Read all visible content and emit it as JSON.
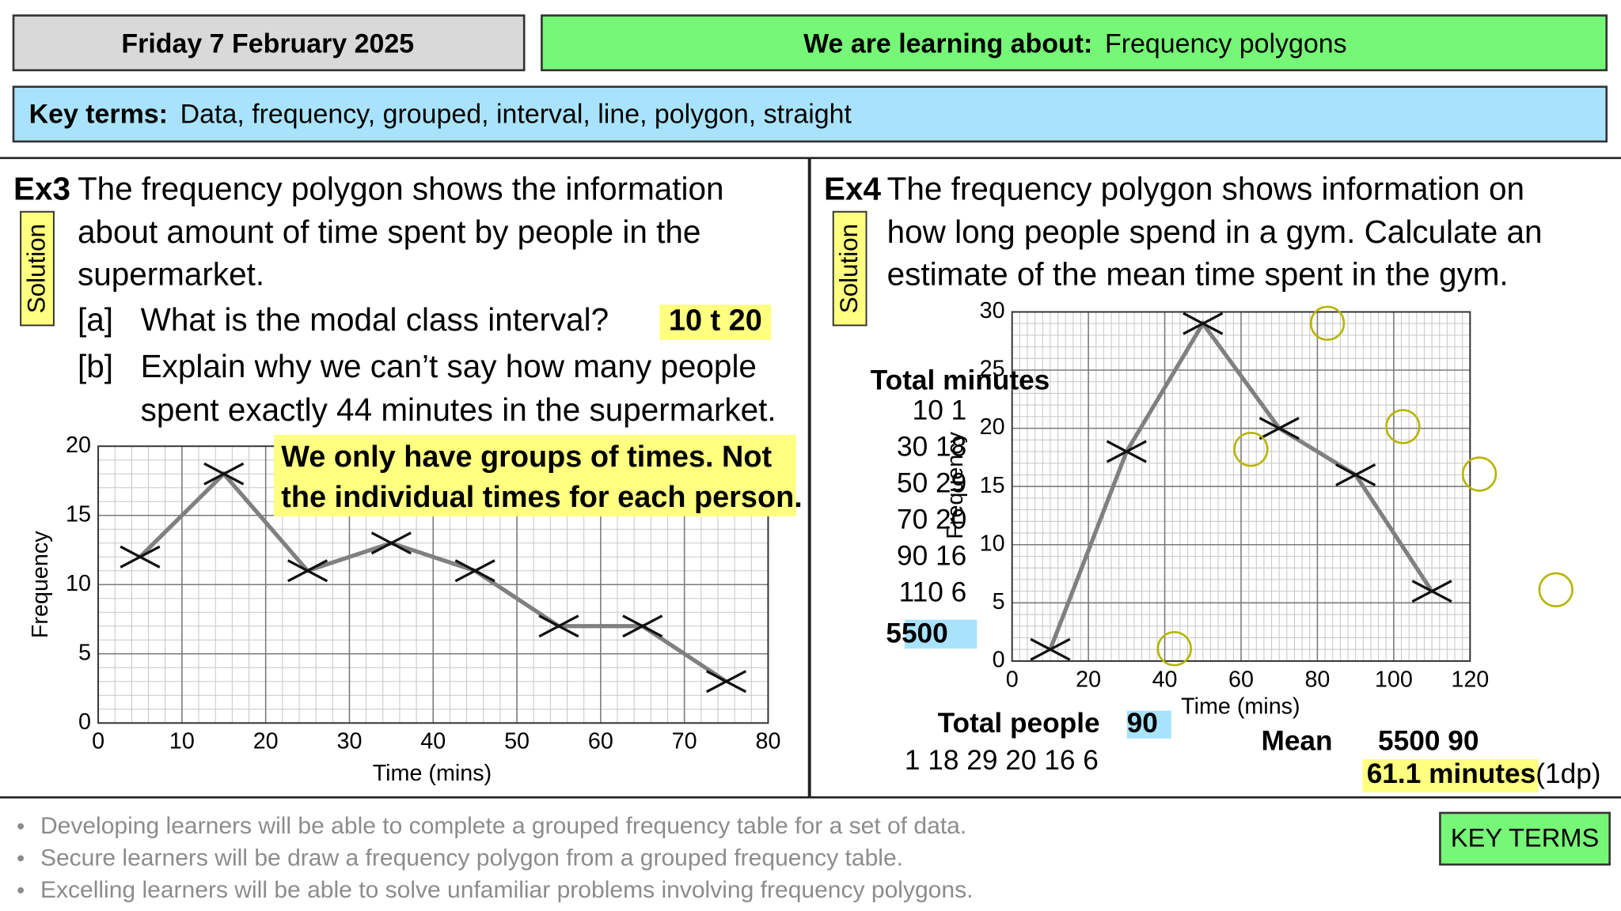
{
  "header": {
    "date": "Friday 7 February 2025",
    "objective_label": "We are learning about:",
    "objective": "Frequency polygons",
    "key_terms_label": "Key terms:",
    "key_terms": "Data, frequency, grouped, interval, line, polygon, straight"
  },
  "ex3": {
    "label": "Ex3",
    "solution": "Solution",
    "question": [
      "The frequency polygon shows the information",
      "about amount of time spent by people in the",
      "supermarket."
    ],
    "part_a": {
      "label": "[a]",
      "text": "What is the modal class interval?",
      "answer": "10  t  20"
    },
    "part_b": {
      "label": "[b]",
      "text": [
        "Explain why we can’t say how many people",
        "spent exactly 44 minutes in the supermarket."
      ],
      "answer": [
        "We only have groups of times. Not",
        "the individual times for each person."
      ]
    }
  },
  "ex4": {
    "label": "Ex4",
    "solution": "Solution",
    "question": [
      "The frequency polygon shows information on",
      "how long people spend in a gym. Calculate an",
      "estimate of the mean time spent in the gym."
    ],
    "working": {
      "total_minutes_label": "Total minutes",
      "total_minutes_rows": [
        "10  1",
        "30  18",
        "50  29",
        "70  20",
        "90  16",
        "110  6"
      ],
      "total_minutes": "5500",
      "total_people_label": "Total people",
      "total_people": "90",
      "people_list": "1  18  29  20  16  6",
      "mean_label": "Mean",
      "mean_calc": "5500  90",
      "mean": "61.1 minutes",
      "mean_note": "(1dp)"
    }
  },
  "chart_data": [
    {
      "type": "line",
      "xlabel": "Time (mins)",
      "ylabel": "Frequency",
      "x": [
        5,
        15,
        25,
        35,
        45,
        55,
        65,
        75
      ],
      "values": [
        12,
        18,
        11,
        13,
        11,
        7,
        7,
        3
      ],
      "color": "#808080",
      "xlim": [
        0,
        80
      ],
      "xticks": [
        0,
        10,
        20,
        30,
        40,
        50,
        60,
        70,
        80
      ],
      "ylim": [
        0,
        20
      ],
      "yticks": [
        0,
        5,
        10,
        15,
        20
      ],
      "grid": true
    },
    {
      "type": "line",
      "xlabel": "Time (mins)",
      "ylabel": "Frequency",
      "x": [
        10,
        30,
        50,
        70,
        90,
        110
      ],
      "values": [
        1,
        18,
        29,
        20,
        16,
        6
      ],
      "color": "#808080",
      "xlim": [
        0,
        120
      ],
      "xticks": [
        0,
        20,
        40,
        60,
        80,
        100,
        120
      ],
      "ylim": [
        0,
        30
      ],
      "yticks": [
        0,
        5,
        10,
        15,
        20,
        25,
        30
      ],
      "grid": true
    }
  ],
  "footer": {
    "objectives": [
      "Developing learners will be able to complete a grouped frequency table for a set of data.",
      "Secure learners will be draw a frequency polygon from a grouped frequency table.",
      "Excelling learners will be able to solve unfamiliar problems involving frequency polygons."
    ],
    "button": "KEY TERMS"
  }
}
